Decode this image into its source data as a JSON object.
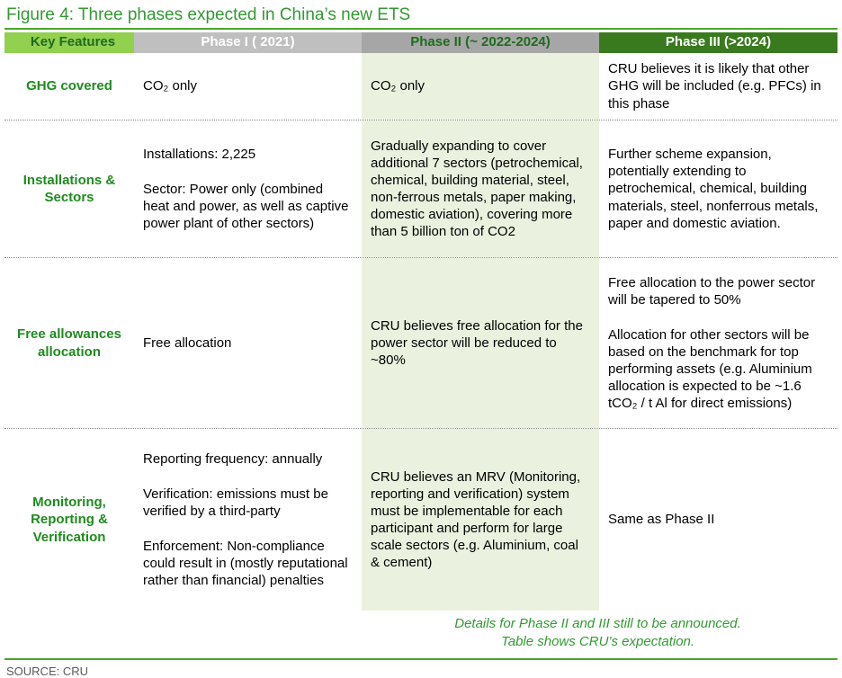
{
  "title": "Figure 4: Three phases expected in China’s new ETS",
  "colors": {
    "title_green": "#339933",
    "key_features_bg": "#92d050",
    "phase1_header_bg": "#bfbfbf",
    "phase2_header_bg": "#a6a6a6",
    "phase3_header_bg": "#3a7a1e",
    "phase2_column_bg": "#eaf2df",
    "feature_label_green": "#1f8b1f",
    "rule_green": "#4ca32e",
    "source_gray": "#595959"
  },
  "table": {
    "headers": [
      "Key Features",
      "Phase I ( 2021)",
      "Phase II (~ 2022-2024)",
      "Phase III (>2024)"
    ],
    "rows": [
      {
        "feature": "GHG covered",
        "phase1": "CO₂ only",
        "phase2": "CO₂ only",
        "phase3": "CRU believes it is likely that other GHG will be included (e.g. PFCs) in this phase"
      },
      {
        "feature": "Installations & Sectors",
        "phase1": [
          "Installations: 2,225",
          "Sector: Power only (combined heat and power, as well as captive power plant of other sectors)"
        ],
        "phase2": "Gradually expanding to cover additional 7 sectors (petrochemical, chemical, building material, steel, non-ferrous metals, paper making, domestic aviation), covering more than 5 billion ton of CO2",
        "phase3": "Further scheme expansion, potentially extending to petrochemical, chemical, building materials, steel, nonferrous metals, paper and domestic aviation."
      },
      {
        "feature": "Free allowances allocation",
        "phase1": "Free allocation",
        "phase2": "CRU believes free allocation for the power sector will be reduced to ~80%",
        "phase3": [
          "Free allocation to the power sector will be tapered to 50%",
          "Allocation for other sectors will be based on the benchmark for top performing assets (e.g. Aluminium allocation is expected to be ~1.6 tCO₂ / t Al for direct emissions)"
        ]
      },
      {
        "feature": "Monitoring, Reporting & Verification",
        "phase1": [
          "Reporting frequency: annually",
          "Verification: emissions must be verified by a third-party",
          "Enforcement: Non-compliance could result in (mostly reputational rather than financial) penalties"
        ],
        "phase2": "CRU believes an MRV (Monitoring, reporting and verification) system must be implementable for each participant and perform for large scale sectors (e.g. Aluminium, coal & cement)",
        "phase3": "Same as Phase II"
      }
    ]
  },
  "footnote": [
    "Details for Phase II and III still to be announced.",
    "Table shows CRU’s expectation."
  ],
  "source": "SOURCE: CRU"
}
